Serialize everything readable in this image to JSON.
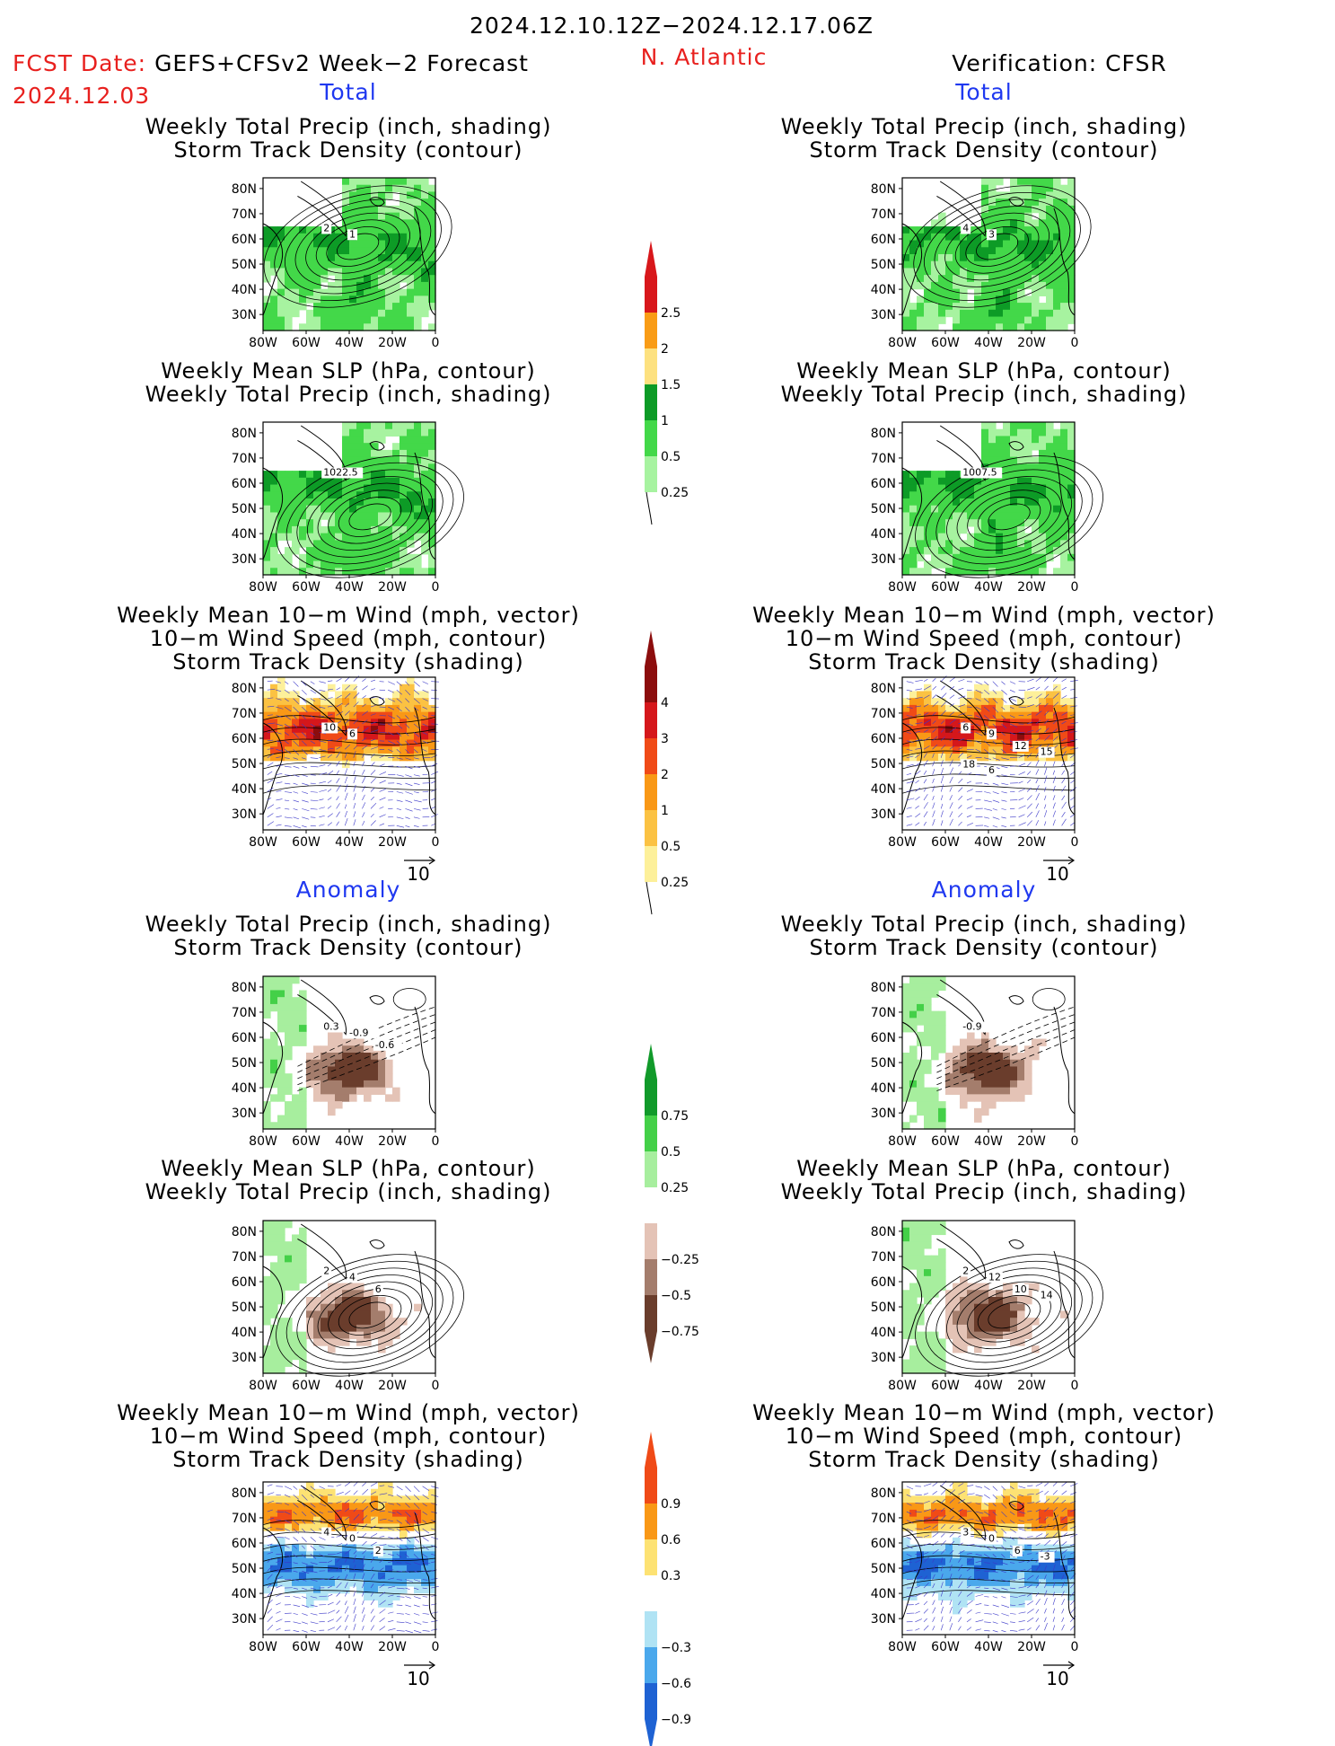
{
  "header": {
    "date_range": "2024.12.10.12Z−2024.12.17.06Z",
    "fcst_label": "FCST Date: GEFS+CFSv2 Week−2 Forecast",
    "fcst_date": "2024.12.03",
    "region": "N. Atlantic",
    "verification": "Verification: CFSR"
  },
  "sections": {
    "total": "Total",
    "anomaly": "Anomaly"
  },
  "panel_titles": {
    "precip_track": [
      "Weekly Total Precip (inch, shading)",
      "Storm Track Density (contour)"
    ],
    "slp_precip": [
      "Weekly Mean SLP (hPa, contour)",
      "Weekly Total Precip (inch, shading)"
    ],
    "wind": [
      "Weekly Mean 10−m Wind (mph, vector)",
      "10−m Wind Speed (mph, contour)",
      "Storm Track Density (shading)"
    ]
  },
  "axes": {
    "lat_ticks": [
      "80N",
      "70N",
      "60N",
      "50N",
      "40N",
      "30N"
    ],
    "lon_ticks": [
      "80W",
      "60W",
      "40W",
      "20W",
      "0"
    ],
    "vector_ref": "10"
  },
  "contour_labels": {
    "fc_total_track": [
      "2",
      "1"
    ],
    "vf_total_track": [
      "4",
      "3"
    ],
    "fc_total_slp": [
      "1022.5"
    ],
    "vf_total_slp": [
      "1007.5"
    ],
    "fc_total_wind": [
      "10",
      "6"
    ],
    "vf_total_wind": [
      "6",
      "9",
      "12",
      "15",
      "18",
      "6"
    ],
    "fc_anom_track": [
      "0.3",
      "-0.9",
      "-0.6"
    ],
    "vf_anom_track": [
      "-0.9"
    ],
    "fc_anom_slp": [
      "2",
      "4",
      "6"
    ],
    "vf_anom_slp": [
      "2",
      "12",
      "10",
      "14"
    ],
    "fc_anom_wind": [
      "4",
      "0",
      "2"
    ],
    "vf_anom_wind": [
      "3",
      "0",
      "6",
      "-3"
    ]
  },
  "colorbars": {
    "precip_total": {
      "labels": [
        "2.5",
        "2",
        "1.5",
        "1",
        "0.5",
        "0.25"
      ],
      "colors": [
        "#d8171b",
        "#f99c16",
        "#fde17f",
        "#0d9b26",
        "#43d849",
        "#a7f3a0"
      ]
    },
    "track_total": {
      "labels": [
        "4",
        "3",
        "2",
        "1",
        "0.5",
        "0.25"
      ],
      "colors": [
        "#8c0d0d",
        "#d5171b",
        "#f04a17",
        "#f99816",
        "#fbc243",
        "#fdf09a"
      ]
    },
    "precip_anom": {
      "labels": [
        "0.75",
        "0.5",
        "0.25",
        "−0.25",
        "−0.5",
        "−0.75"
      ],
      "colors": [
        "#119a2a",
        "#44d048",
        "#a7ee9e",
        "#ffffff",
        "#e4c3b6",
        "#a47d6c",
        "#6a3d2c"
      ]
    },
    "track_anom": {
      "labels": [
        "0.9",
        "0.6",
        "0.3",
        "−0.3",
        "−0.6",
        "−0.9"
      ],
      "colors": [
        "#f04a17",
        "#f99816",
        "#fde273",
        "#ffffff",
        "#b0e3f4",
        "#4aa8ec",
        "#1e62d3"
      ]
    }
  },
  "chart_data": [
    {
      "type": "heatmap",
      "panel": "forecast-total-precip-track",
      "title": [
        "Weekly Total Precip (inch, shading)",
        "Storm Track Density (contour)"
      ],
      "xlim": [
        "80W",
        "0"
      ],
      "ylim": [
        "25N",
        "85N"
      ],
      "contour_labels": [
        "2",
        "1"
      ]
    },
    {
      "type": "heatmap",
      "panel": "forecast-total-slp-precip",
      "title": [
        "Weekly Mean SLP (hPa, contour)",
        "Weekly Total Precip (inch, shading)"
      ],
      "xlim": [
        "80W",
        "0"
      ],
      "ylim": [
        "25N",
        "85N"
      ],
      "contour_labels": [
        "1022.5"
      ]
    },
    {
      "type": "heatmap",
      "panel": "forecast-total-wind",
      "title": [
        "Weekly Mean 10−m Wind (mph, vector)",
        "10−m Wind Speed (mph, contour)",
        "Storm Track Density (shading)"
      ],
      "xlim": [
        "80W",
        "0"
      ],
      "ylim": [
        "25N",
        "85N"
      ],
      "contour_labels": [
        "10",
        "6"
      ]
    },
    {
      "type": "heatmap",
      "panel": "verification-total-precip-track",
      "title": [
        "Weekly Total Precip (inch, shading)",
        "Storm Track Density (contour)"
      ],
      "contour_labels": [
        "4",
        "3"
      ]
    },
    {
      "type": "heatmap",
      "panel": "verification-total-slp-precip",
      "title": [
        "Weekly Mean SLP (hPa, contour)",
        "Weekly Total Precip (inch, shading)"
      ],
      "contour_labels": [
        "1007.5"
      ]
    },
    {
      "type": "heatmap",
      "panel": "verification-total-wind",
      "title": [
        "Weekly Mean 10−m Wind (mph, vector)",
        "10−m Wind Speed (mph, contour)",
        "Storm Track Density (shading)"
      ],
      "contour_labels": [
        "6",
        "9",
        "12",
        "15",
        "18"
      ]
    },
    {
      "type": "heatmap",
      "panel": "forecast-anomaly-precip-track",
      "contour_labels": [
        "0.3",
        "-0.9",
        "-0.6"
      ]
    },
    {
      "type": "heatmap",
      "panel": "forecast-anomaly-slp-precip",
      "contour_labels": [
        "2",
        "4",
        "6"
      ]
    },
    {
      "type": "heatmap",
      "panel": "forecast-anomaly-wind",
      "contour_labels": [
        "4",
        "0",
        "2"
      ]
    },
    {
      "type": "heatmap",
      "panel": "verification-anomaly-precip-track",
      "contour_labels": [
        "-0.9"
      ]
    },
    {
      "type": "heatmap",
      "panel": "verification-anomaly-slp-precip",
      "contour_labels": [
        "2",
        "12",
        "10",
        "14"
      ]
    },
    {
      "type": "heatmap",
      "panel": "verification-anomaly-wind",
      "contour_labels": [
        "3",
        "0",
        "6",
        "-3"
      ]
    }
  ]
}
